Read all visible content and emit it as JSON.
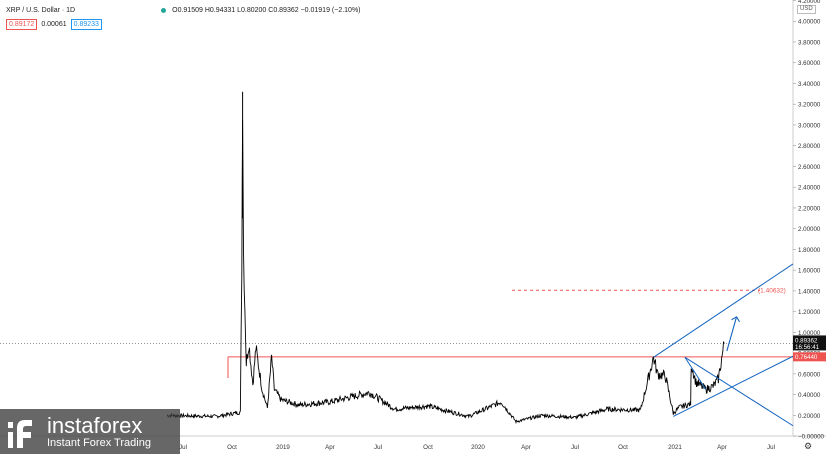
{
  "header": {
    "symbol": "XRP / U.S. Dollar · 1D",
    "ohlc": "O0.91509 H0.94331 L0.80200 C0.89362 −0.01919 (−2.10%)",
    "bid": "0.89172",
    "spread": "0.00061",
    "ask": "0.89233",
    "currency": "USD"
  },
  "price_tag": {
    "price": "0.89362",
    "countdown": "16:56:41"
  },
  "level_tag": {
    "price": "0.76440"
  },
  "target_label": "(1.40632)",
  "watermark": {
    "brand": "instaforex",
    "tagline": "Instant Forex Trading"
  },
  "chart_data": {
    "type": "line",
    "title": "XRP / U.S. Dollar · 1D",
    "y_axis_ticks": [
      "4.20000",
      "4.00000",
      "3.80000",
      "3.60000",
      "3.40000",
      "3.20000",
      "3.00000",
      "2.80000",
      "2.60000",
      "2.40000",
      "2.20000",
      "2.00000",
      "1.80000",
      "1.60000",
      "1.40000",
      "1.20000",
      "1.00000",
      "0.80000",
      "0.60000",
      "0.40000",
      "0.20000",
      "−0.00000"
    ],
    "ylim": [
      -0.05,
      4.25
    ],
    "x_axis_ticks": [
      "Jul",
      "Oct",
      "2019",
      "Apr",
      "Jul",
      "Oct",
      "2020",
      "Apr",
      "Jul",
      "Oct",
      "2021",
      "Apr",
      "Jul"
    ],
    "series": [
      {
        "x": [
          "2017-06",
          "2017-09",
          "2017-12-15",
          "2017-12-28",
          "2018-01-04",
          "2018-01-12",
          "2018-02-06",
          "2018-03-01",
          "2018-04-06",
          "2018-05-03",
          "2018-06-28",
          "2018-08-14",
          "2018-09-21",
          "2018-10-15",
          "2018-12-15",
          "2019-02-01",
          "2019-04-01",
          "2019-06-15",
          "2019-08-01",
          "2019-10-01",
          "2019-12-15",
          "2020-02-14",
          "2020-03-13",
          "2020-05-01",
          "2020-07-01",
          "2020-09-01",
          "2020-11-01",
          "2020-11-24",
          "2020-12-01",
          "2020-12-15",
          "2020-12-29",
          "2021-01-10",
          "2021-01-31",
          "2021-02-01",
          "2021-02-10",
          "2021-03-01",
          "2021-03-15",
          "2021-03-25",
          "2021-04-05"
        ],
        "y": [
          0.2,
          0.19,
          0.23,
          1.65,
          3.32,
          1.8,
          0.7,
          0.9,
          0.5,
          0.85,
          0.45,
          0.27,
          0.76,
          0.45,
          0.35,
          0.3,
          0.33,
          0.42,
          0.26,
          0.29,
          0.19,
          0.33,
          0.14,
          0.2,
          0.18,
          0.26,
          0.25,
          0.76,
          0.6,
          0.58,
          0.22,
          0.28,
          0.31,
          0.7,
          0.52,
          0.45,
          0.48,
          0.55,
          0.89
        ]
      }
    ],
    "horizontal_lines": [
      {
        "y": 0.7644,
        "color": "#ef5350",
        "style": "solid"
      },
      {
        "y": 1.40632,
        "color": "#ef5350",
        "style": "dashed"
      },
      {
        "y": 0.89362,
        "color": "#888888",
        "style": "dotted"
      }
    ],
    "trend_lines": [
      {
        "from": [
          "2020-11-24",
          0.76
        ],
        "to": [
          "2021-08-31",
          1.66
        ],
        "color": "#1565c0"
      },
      {
        "from": [
          "2020-12-29",
          0.19
        ],
        "to": [
          "2021-08-31",
          0.77
        ],
        "color": "#1565c0"
      },
      {
        "from": [
          "2021-01-20",
          0.76
        ],
        "to": [
          "2021-08-31",
          0.1
        ],
        "color": "#1565c0"
      },
      {
        "from": [
          "2021-01-20",
          0.76
        ],
        "to": [
          "2021-03-01",
          0.45
        ],
        "color": "#1565c0"
      }
    ],
    "arrow": {
      "from": [
        "2021-04-10",
        0.82
      ],
      "to": [
        "2021-04-28",
        1.15
      ],
      "color": "#1565c0"
    },
    "grid": false,
    "colors": {
      "price": "#000000",
      "level": "#ef5350",
      "channel": "#1565c0",
      "axis_text": "#333333"
    }
  }
}
